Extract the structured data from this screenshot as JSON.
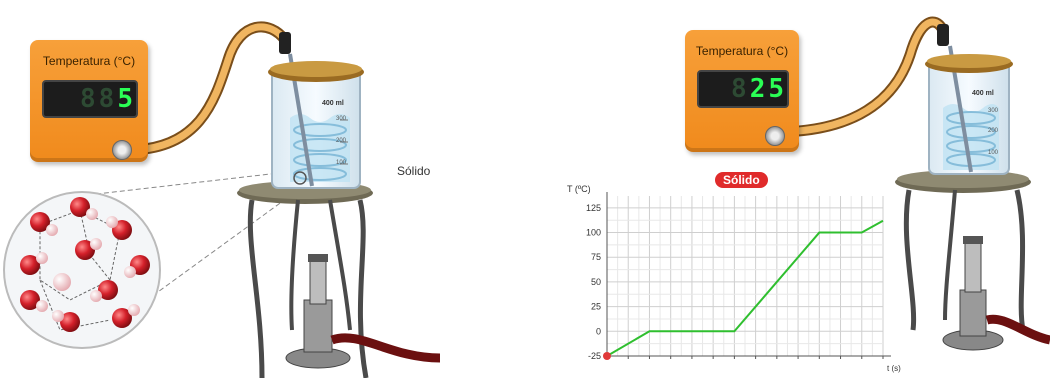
{
  "left": {
    "thermometer": {
      "title": "Temperatura (°C)",
      "reading": "5",
      "ghost": "88"
    },
    "beaker": {
      "volume_label": "400 ml",
      "ticks": [
        "300",
        "200",
        "100"
      ]
    },
    "state_label": "Sólido"
  },
  "right": {
    "thermometer": {
      "title": "Temperatura (°C)",
      "reading": "25",
      "ghost": "8"
    },
    "beaker": {
      "volume_label": "400 ml",
      "ticks": [
        "300",
        "200",
        "100"
      ]
    },
    "state_badge": "Sólido"
  },
  "chart_data": {
    "type": "line",
    "title": "",
    "ylabel": "T (ºC)",
    "xlabel": "t (s)",
    "yticks": [
      "125",
      "100",
      "75",
      "50",
      "25",
      "0",
      "-25"
    ],
    "ylim": [
      -25,
      137
    ],
    "xlim": [
      0,
      13
    ],
    "grid": true,
    "series": [
      {
        "x": [
          0,
          2,
          6,
          10,
          12,
          14.5
        ],
        "y": [
          -25,
          0,
          0,
          100,
          100,
          130
        ],
        "color": "#2fbf2f"
      }
    ],
    "marker": {
      "x": 0,
      "y": -25,
      "color": "#e03a3a"
    }
  },
  "colors": {
    "thermo": "#f39325",
    "lcd_text": "#2aff55",
    "line": "#2fbf2f",
    "badge": "#e02b2b",
    "tube": "#e2a04a"
  }
}
